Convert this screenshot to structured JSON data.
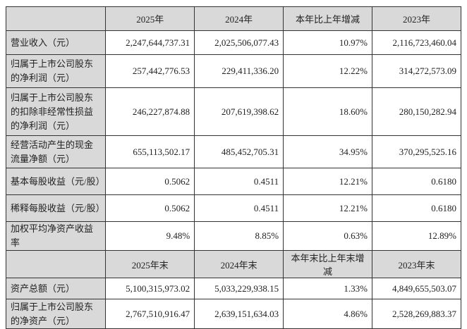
{
  "header1": [
    "2025年",
    "2024年",
    "本年比上年增减",
    "2023年"
  ],
  "rows1": [
    {
      "label": "营业收入（元）",
      "values": [
        "2,247,644,737.31",
        "2,025,506,077.43",
        "10.97%",
        "2,116,723,460.04"
      ]
    },
    {
      "label": "归属于上市公司股东的净利润（元）",
      "values": [
        "257,442,776.53",
        "229,411,336.20",
        "12.22%",
        "314,272,573.09"
      ]
    },
    {
      "label": "归属于上市公司股东的扣除非经常性损益的净利润（元）",
      "values": [
        "246,227,874.88",
        "207,619,398.62",
        "18.60%",
        "280,150,282.94"
      ]
    },
    {
      "label": "经营活动产生的现金流量净额（元）",
      "values": [
        "655,113,502.17",
        "485,452,705.31",
        "34.95%",
        "370,295,525.16"
      ]
    },
    {
      "label": "基本每股收益（元/股）",
      "values": [
        "0.5062",
        "0.4511",
        "12.21%",
        "0.6180"
      ]
    },
    {
      "label": "稀释每股收益（元/股）",
      "values": [
        "0.5062",
        "0.4511",
        "12.21%",
        "0.6180"
      ]
    },
    {
      "label": "加权平均净资产收益率",
      "values": [
        "9.48%",
        "8.85%",
        "0.63%",
        "12.89%"
      ]
    }
  ],
  "header2": [
    "2025年末",
    "2024年末",
    "本年末比上年末增减",
    "2023年末"
  ],
  "rows2": [
    {
      "label": "资产总额（元）",
      "values": [
        "5,100,315,973.02",
        "5,033,229,938.15",
        "1.33%",
        "4,849,655,503.07"
      ]
    },
    {
      "label": "归属于上市公司股东的净资产（元）",
      "values": [
        "2,767,510,916.47",
        "2,639,151,634.03",
        "4.86%",
        "2,528,269,883.37"
      ]
    }
  ]
}
